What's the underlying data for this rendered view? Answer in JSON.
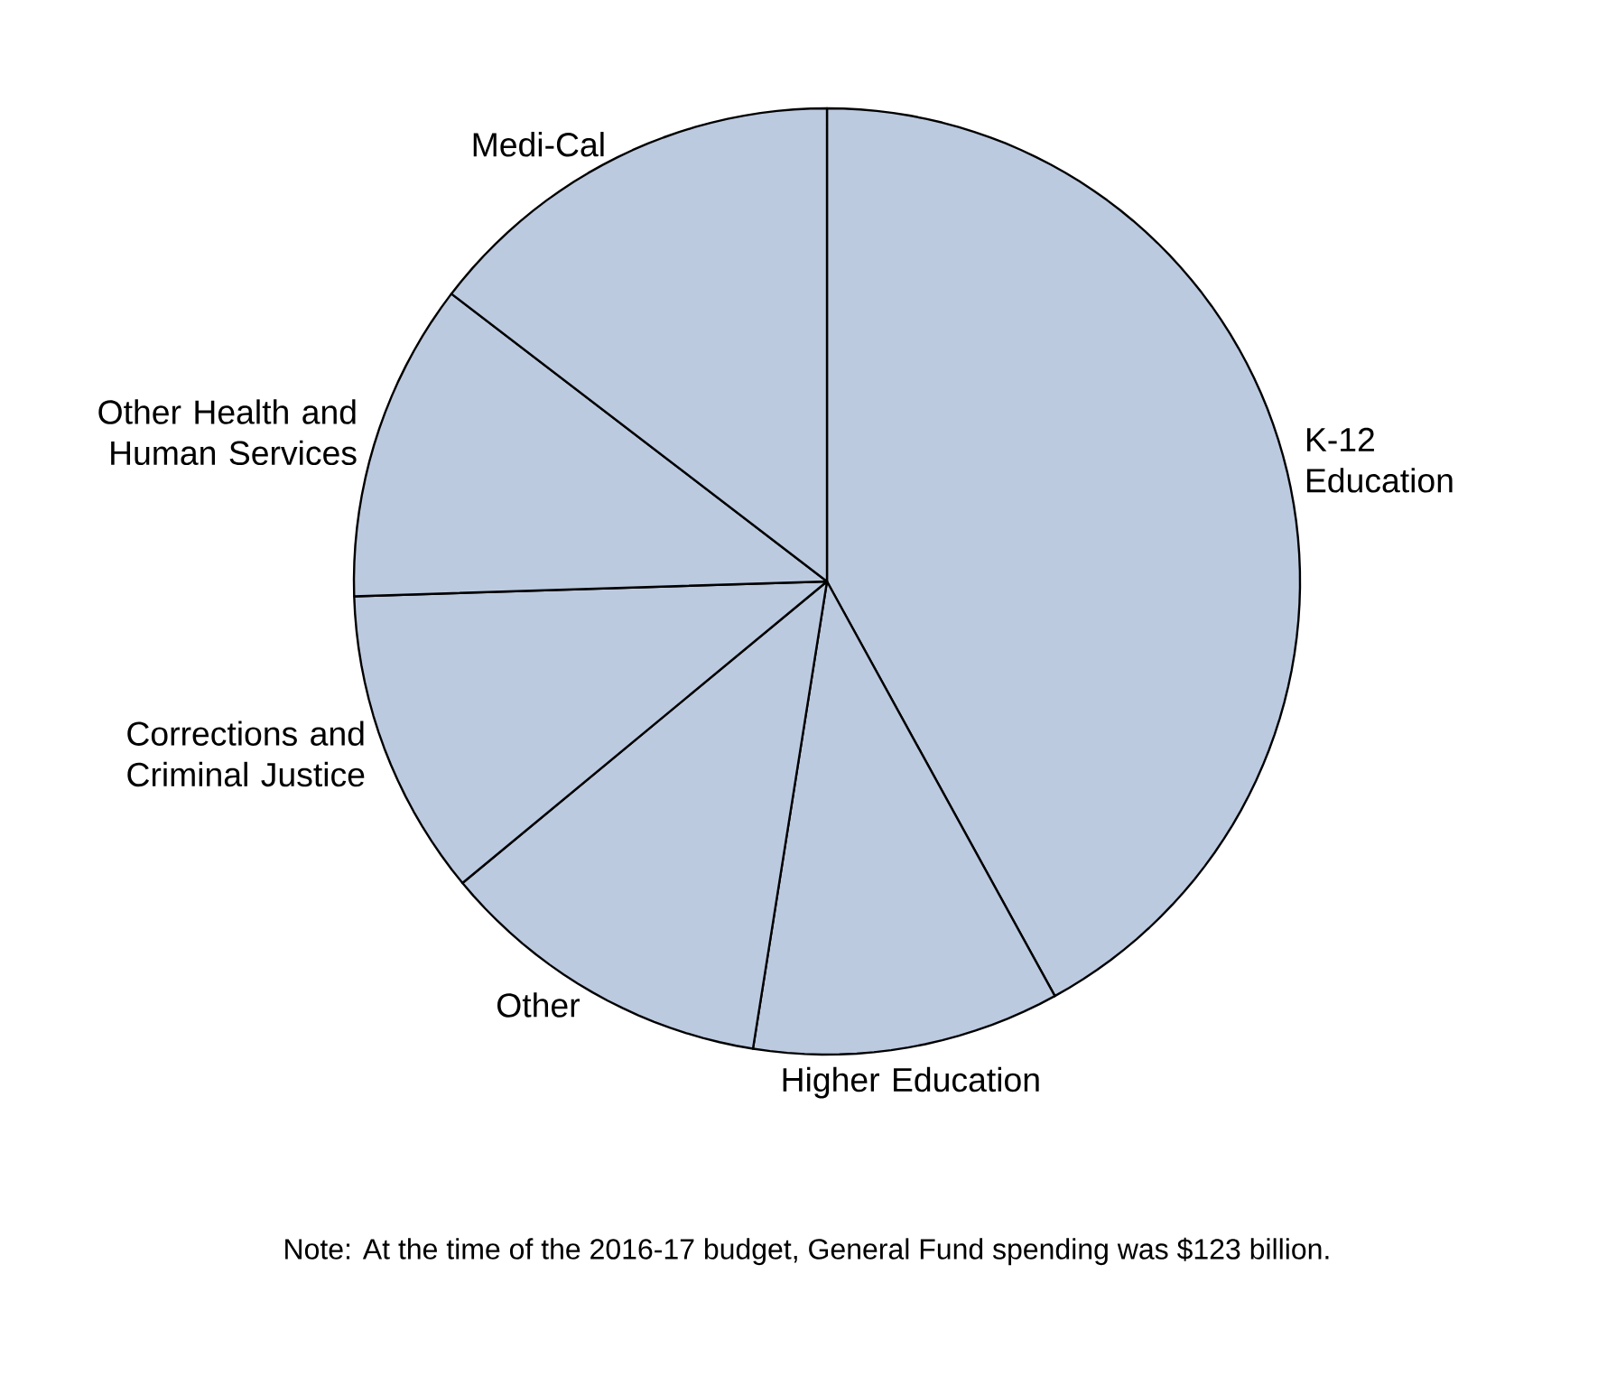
{
  "chart_data": {
    "type": "pie",
    "categories": [
      "K-12 Education",
      "Higher Education",
      "Other",
      "Corrections and Criminal Justice",
      "Other Health and Human Services",
      "Medi-Cal"
    ],
    "values": [
      42,
      10.5,
      11.5,
      10.5,
      10.9,
      14.6
    ],
    "colors": [
      "#bccae0",
      "#bccae0",
      "#bccae0",
      "#bccae0",
      "#bccae0",
      "#bccae0"
    ],
    "annotations": [
      "Note: At the time of the 2016-17 budget, General Fund spending was $123 billion."
    ]
  }
}
